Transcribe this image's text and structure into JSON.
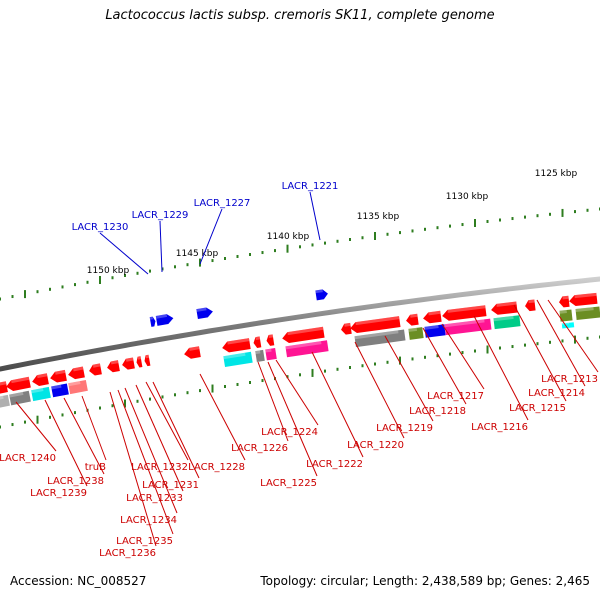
{
  "title": "Lactococcus lactis subsp. cremoris SK11, complete genome",
  "footer": {
    "accession": "Accession: NC_008527",
    "summary": "Topology: circular; Length: 2,438,589 bp; Genes: 2,465"
  },
  "colors": {
    "backbone": "#8c8c8c",
    "tick": "#2e7d1f",
    "forward_label": "#0000cc",
    "reverse_label": "#cc0000"
  },
  "kbp_labels": [
    {
      "kbp": 1125,
      "label": "1125 kbp"
    },
    {
      "kbp": 1130,
      "label": "1130 kbp"
    },
    {
      "kbp": 1135,
      "label": "1135 kbp"
    },
    {
      "kbp": 1140,
      "label": "1140 kbp"
    },
    {
      "kbp": 1145,
      "label": "1145 kbp"
    },
    {
      "kbp": 1150,
      "label": "1150 kbp"
    }
  ],
  "forward_genes": [
    {
      "label": "LACR_1221",
      "color": "#0000ee"
    },
    {
      "label": "LACR_1227",
      "color": "#0000ee"
    },
    {
      "label": "LACR_1229",
      "color": "#0000ee"
    },
    {
      "label": "LACR_1230",
      "color": "#0000ee"
    }
  ],
  "reverse_genes": [
    {
      "label": "LACR_1213",
      "color": "#ff0000"
    },
    {
      "label": "LACR_1214",
      "color": "#ff0000"
    },
    {
      "label": "LACR_1215",
      "color": "#ff0000"
    },
    {
      "label": "LACR_1216",
      "color": "#ff0000"
    },
    {
      "label": "LACR_1217",
      "color": "#ff0000"
    },
    {
      "label": "LACR_1218",
      "color": "#ff0000"
    },
    {
      "label": "LACR_1219",
      "color": "#ff0000"
    },
    {
      "label": "LACR_1220",
      "color": "#ff0000"
    },
    {
      "label": "LACR_1222",
      "color": "#ff0000"
    },
    {
      "label": "LACR_1224",
      "color": "#ff0000"
    },
    {
      "label": "LACR_1225",
      "color": "#ff0000"
    },
    {
      "label": "LACR_1226",
      "color": "#ff0000"
    },
    {
      "label": "LACR_1228",
      "color": "#ff0000"
    },
    {
      "label": "LACR_1231",
      "color": "#ff0000"
    },
    {
      "label": "LACR_1232",
      "color": "#ff0000"
    },
    {
      "label": "LACR_1233",
      "color": "#ff0000"
    },
    {
      "label": "LACR_1234",
      "color": "#ff0000"
    },
    {
      "label": "LACR_1235",
      "color": "#ff0000"
    },
    {
      "label": "LACR_1236",
      "color": "#ff0000"
    },
    {
      "label": "truB",
      "color": "#ff0000"
    },
    {
      "label": "LACR_1238",
      "color": "#ff0000"
    },
    {
      "label": "LACR_1239",
      "color": "#ff0000"
    },
    {
      "label": "LACR_1240",
      "color": "#ff0000"
    }
  ],
  "feature_colors": [
    "#00e5e5",
    "#808080",
    "#ff1493",
    "#0000ee",
    "#6b8e23",
    "#00cc88",
    "#ff7777",
    "#b0b0b0",
    "#00ffff"
  ]
}
